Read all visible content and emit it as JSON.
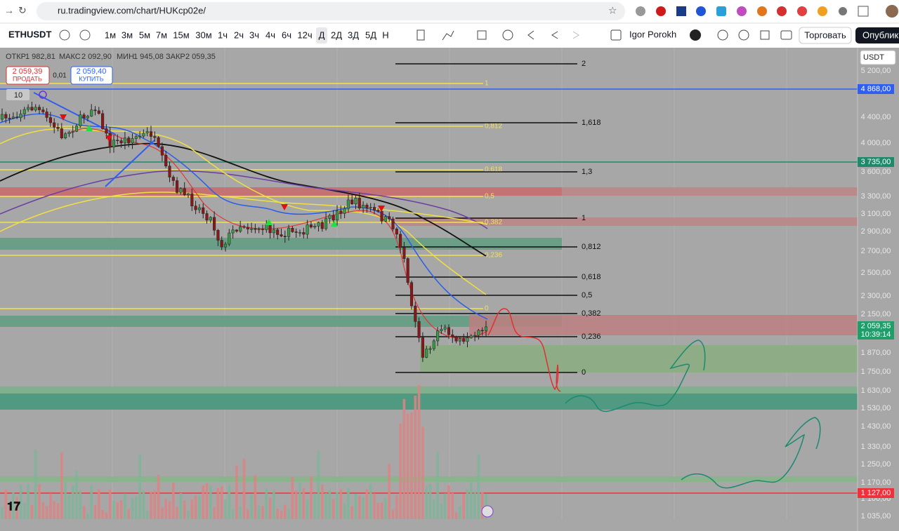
{
  "browser": {
    "url": "ru.tradingview.com/chart/HUKcp02e/"
  },
  "toolbar": {
    "symbol": "ETHUSDT",
    "intervals": [
      "1м",
      "3м",
      "5м",
      "7м",
      "15м",
      "30м",
      "1ч",
      "2ч",
      "3ч",
      "4ч",
      "6ч",
      "12ч",
      "Д",
      "2Д",
      "3Д",
      "5Д",
      "Н"
    ],
    "user": "Igor Porokh",
    "trade": "Торговать",
    "publish": "Опублико"
  },
  "legend": {
    "open_label": "ОТКР",
    "open": "1 982,81",
    "high_label": "МАКС",
    "high": "2 092,90",
    "low_label": "МИН",
    "low": "1 945,08",
    "close_label": "ЗАКР",
    "close": "2 059,35"
  },
  "order": {
    "sell_price": "2 059,39",
    "sell": "ПРОДАТЬ",
    "spread": "0,01",
    "buy_price": "2 059,40",
    "buy": "КУПИТЬ"
  },
  "indicators_count": "10",
  "price_axis": {
    "currency": "USDT",
    "labels": [
      "5 200,00",
      "4 400,00",
      "4 000,00",
      "3 600,00",
      "3 300,00",
      "3 100,00",
      "2 900,00",
      "2 700,00",
      "2 500,00",
      "2 300,00",
      "2 150,00",
      "1 870,00",
      "1 750,00",
      "1 630,00",
      "1 530,00",
      "1 430,00",
      "1 330,00",
      "1 250,00",
      "1 170,00",
      "1 100,00",
      "1 035,00"
    ],
    "markers": [
      "4 868,00",
      "3 735,00",
      "2 059,35",
      "1 127,00"
    ],
    "countdown": "10:39:14"
  },
  "fib_right": [
    "2",
    "1,618",
    "1,3",
    "1",
    "0,812",
    "0,618",
    "0,5",
    "0,382",
    "0,236",
    "0"
  ],
  "fib_left": [
    "1",
    "0,812",
    "0,618",
    "0,5",
    "0,382",
    "0,236",
    "0"
  ]
}
